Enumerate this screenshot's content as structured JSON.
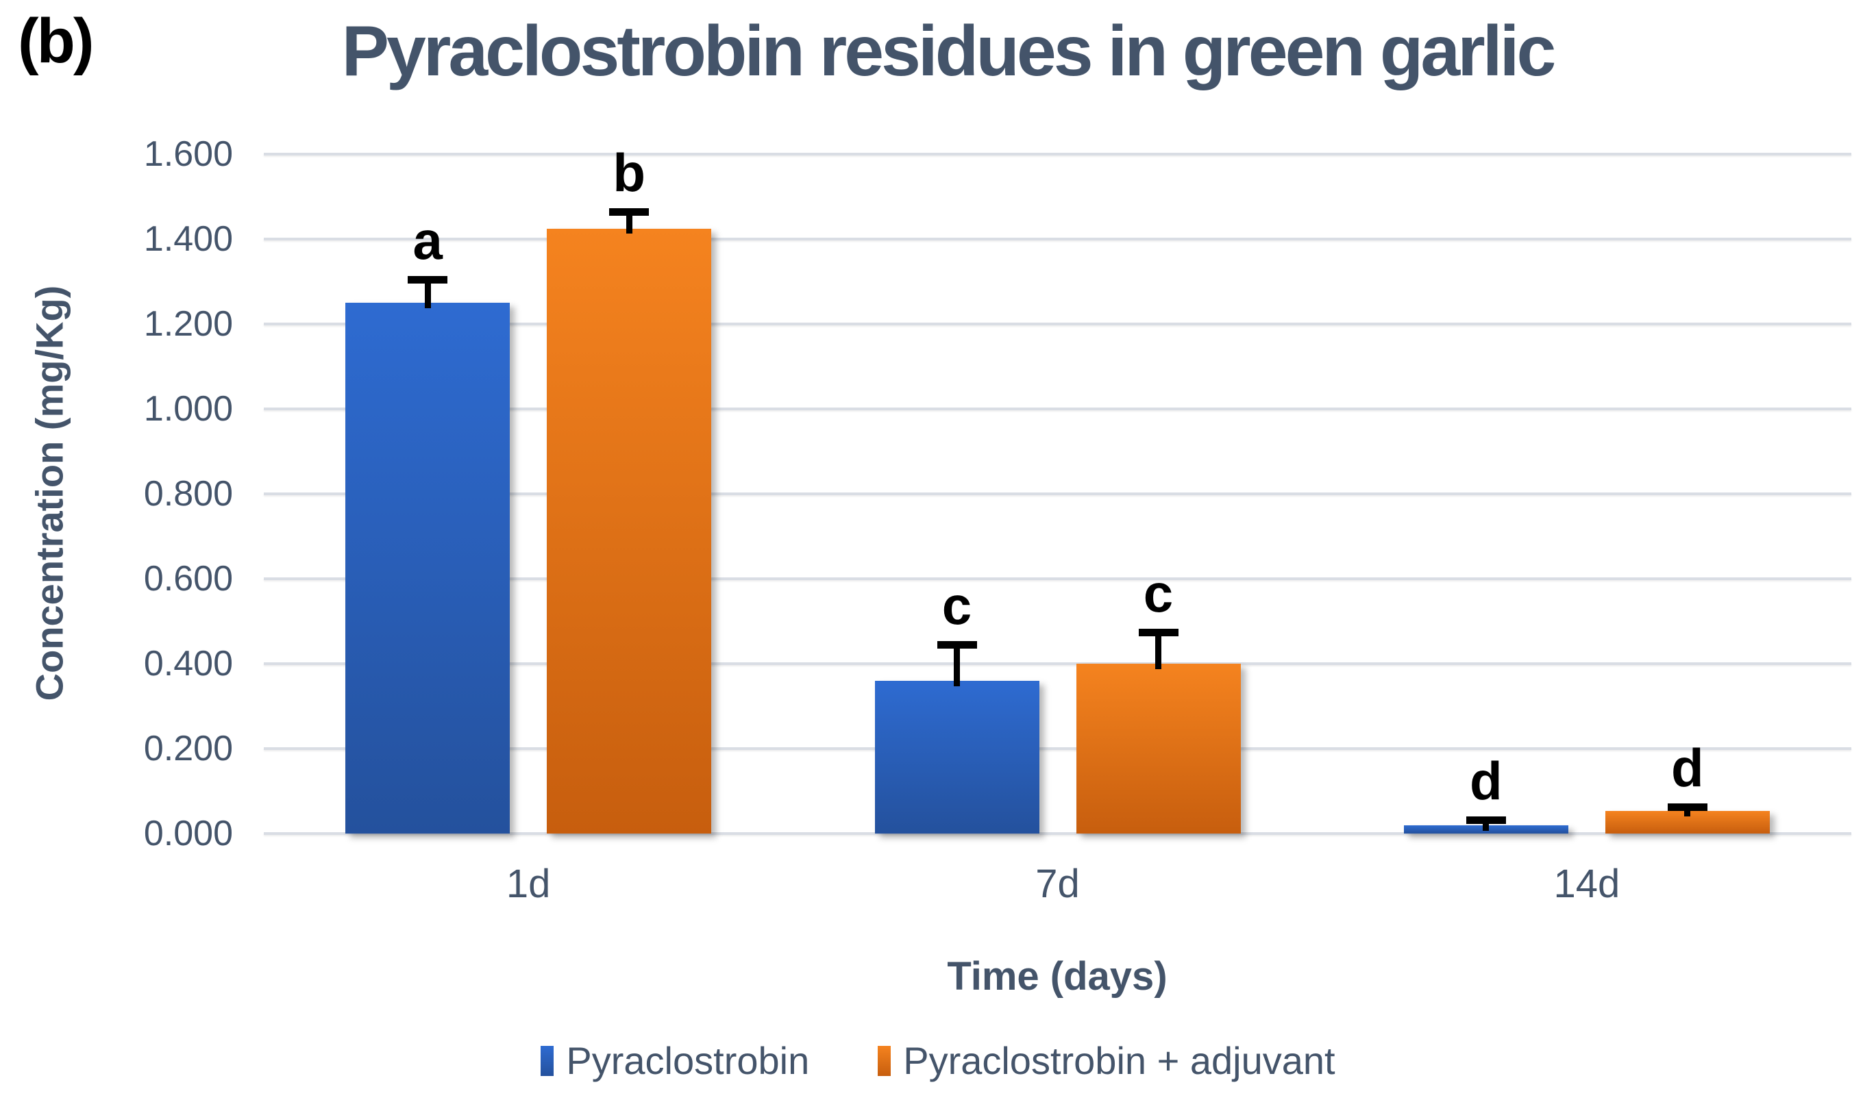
{
  "figure_label": "(b)",
  "chart_data": {
    "type": "bar",
    "title": "Pyraclostrobin residues in green garlic",
    "xlabel": "Time (days)",
    "ylabel": "Concentration (mg/Kg)",
    "categories": [
      "1d",
      "7d",
      "14d"
    ],
    "series": [
      {
        "name": "Pyraclostrobin",
        "color": "#2E6BD1",
        "color_dark": "#24519D",
        "values": [
          1.25,
          0.36,
          0.02
        ],
        "errors": [
          0.055,
          0.085,
          0.012
        ],
        "letters": [
          "a",
          "c",
          "d"
        ]
      },
      {
        "name": "Pyraclostrobin + adjuvant",
        "color": "#F5831F",
        "color_dark": "#C75E0E",
        "values": [
          1.425,
          0.4,
          0.053
        ],
        "errors": [
          0.04,
          0.075,
          0.01
        ],
        "letters": [
          "b",
          "c",
          "d"
        ]
      }
    ],
    "ylim": [
      0,
      1.6
    ],
    "ytick_step": 0.2,
    "yticks": [
      "0.000",
      "0.200",
      "0.400",
      "0.600",
      "0.800",
      "1.000",
      "1.200",
      "1.400",
      "1.600"
    ],
    "grid": true,
    "legend_position": "bottom",
    "text_color": "#44546A",
    "gridline_color": "#D9DDE4",
    "error_bar_color": "#000000"
  }
}
